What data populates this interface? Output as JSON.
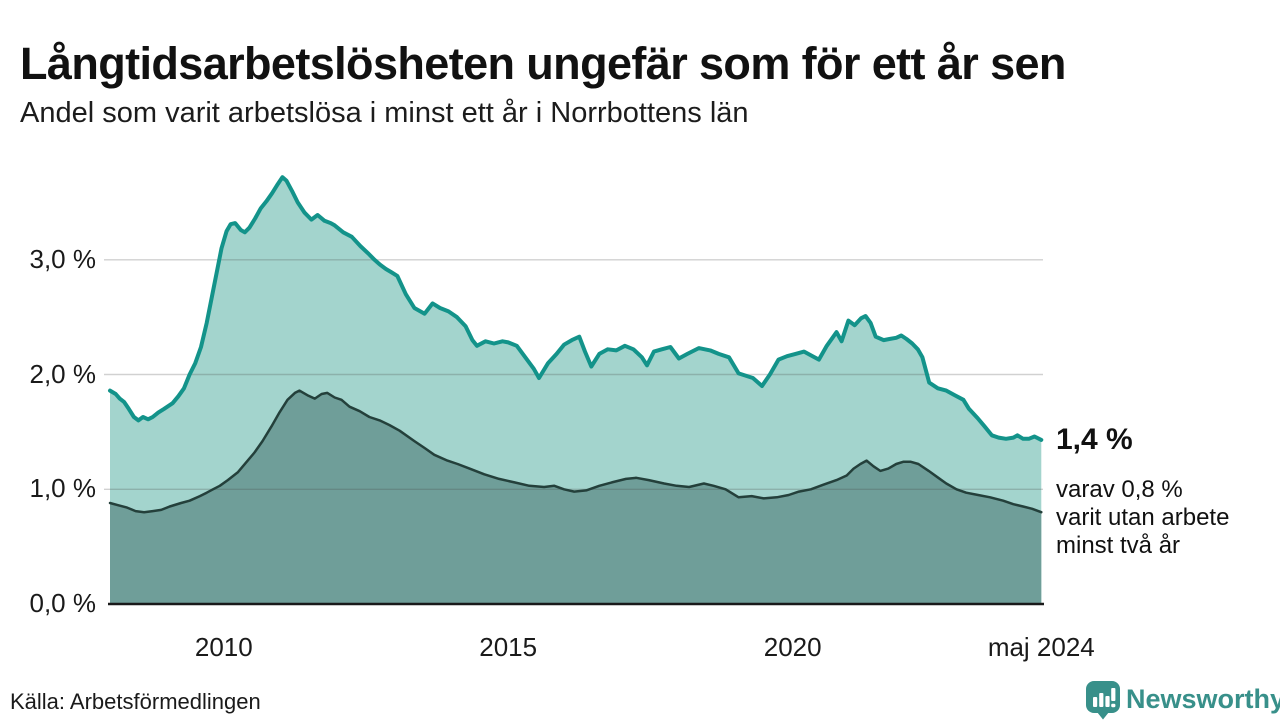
{
  "header": {
    "title": "Långtidsarbetslösheten ungefär som för ett år sen",
    "subtitle": "Andel som varit arbetslösa i minst ett år i Norrbottens län"
  },
  "annotation": {
    "value_label": "1,4 %",
    "lines": [
      "varav 0,8 %",
      "varit utan arbete",
      "minst två år"
    ]
  },
  "footer": {
    "source": "Källa: Arbetsförmedlingen",
    "brand": "Newsworthy"
  },
  "colors": {
    "text": "#111111",
    "grid": "#d9d9d9",
    "axis": "#1a1a1a",
    "brand": "#38908a",
    "line_1yr": "#13938a",
    "fill_1yr": "#a3d4cd",
    "line_2yr": "#24403b",
    "fill_2yr": "#6f9e99"
  },
  "chart_data": {
    "type": "area",
    "title": "Långtidsarbetslösheten ungefär som för ett år sen",
    "subtitle": "Andel som varit arbetslösa i minst ett år i Norrbottens län",
    "unit": "%",
    "grid": true,
    "legend_position": "none",
    "x_axis": {
      "range": [
        2008.0,
        2024.4
      ],
      "ticks": [
        {
          "t": 2010,
          "label": "2010"
        },
        {
          "t": 2015,
          "label": "2015"
        },
        {
          "t": 2020,
          "label": "2020"
        },
        {
          "t": 2024.37,
          "label": "maj 2024"
        }
      ]
    },
    "y_axis": {
      "range": [
        0,
        3.8
      ],
      "ticks": [
        {
          "v": 0,
          "label": "0,0 %"
        },
        {
          "v": 1,
          "label": "1,0 %"
        },
        {
          "v": 2,
          "label": "2,0 %"
        },
        {
          "v": 3,
          "label": "3,0 %"
        }
      ]
    },
    "series": [
      {
        "id": "1yr",
        "name": "minst ett år",
        "end_label": "1,4 %",
        "line_color": "#13938a",
        "fill_color": "#a3d4cd",
        "line_width": 4,
        "points": [
          [
            2008.0,
            1.86
          ],
          [
            2008.1,
            1.83
          ],
          [
            2008.17,
            1.79
          ],
          [
            2008.25,
            1.76
          ],
          [
            2008.33,
            1.7
          ],
          [
            2008.42,
            1.63
          ],
          [
            2008.5,
            1.6
          ],
          [
            2008.58,
            1.63
          ],
          [
            2008.67,
            1.61
          ],
          [
            2008.75,
            1.63
          ],
          [
            2008.85,
            1.67
          ],
          [
            2008.95,
            1.7
          ],
          [
            2009.1,
            1.75
          ],
          [
            2009.2,
            1.81
          ],
          [
            2009.3,
            1.88
          ],
          [
            2009.4,
            2.0
          ],
          [
            2009.5,
            2.1
          ],
          [
            2009.6,
            2.24
          ],
          [
            2009.7,
            2.45
          ],
          [
            2009.8,
            2.7
          ],
          [
            2009.9,
            2.95
          ],
          [
            2009.96,
            3.1
          ],
          [
            2010.05,
            3.25
          ],
          [
            2010.12,
            3.31
          ],
          [
            2010.2,
            3.32
          ],
          [
            2010.3,
            3.26
          ],
          [
            2010.37,
            3.24
          ],
          [
            2010.45,
            3.28
          ],
          [
            2010.55,
            3.36
          ],
          [
            2010.65,
            3.45
          ],
          [
            2010.75,
            3.51
          ],
          [
            2010.85,
            3.58
          ],
          [
            2010.95,
            3.66
          ],
          [
            2011.03,
            3.72
          ],
          [
            2011.1,
            3.69
          ],
          [
            2011.2,
            3.6
          ],
          [
            2011.3,
            3.5
          ],
          [
            2011.42,
            3.41
          ],
          [
            2011.54,
            3.35
          ],
          [
            2011.65,
            3.39
          ],
          [
            2011.77,
            3.34
          ],
          [
            2011.88,
            3.32
          ],
          [
            2011.95,
            3.3
          ],
          [
            2012.1,
            3.24
          ],
          [
            2012.25,
            3.2
          ],
          [
            2012.4,
            3.12
          ],
          [
            2012.55,
            3.05
          ],
          [
            2012.65,
            3.0
          ],
          [
            2012.74,
            2.96
          ],
          [
            2012.85,
            2.92
          ],
          [
            2012.95,
            2.89
          ],
          [
            2013.05,
            2.86
          ],
          [
            2013.2,
            2.7
          ],
          [
            2013.35,
            2.58
          ],
          [
            2013.53,
            2.53
          ],
          [
            2013.67,
            2.62
          ],
          [
            2013.8,
            2.58
          ],
          [
            2013.95,
            2.55
          ],
          [
            2014.1,
            2.5
          ],
          [
            2014.25,
            2.42
          ],
          [
            2014.37,
            2.3
          ],
          [
            2014.45,
            2.25
          ],
          [
            2014.6,
            2.29
          ],
          [
            2014.75,
            2.27
          ],
          [
            2014.9,
            2.29
          ],
          [
            2015.0,
            2.28
          ],
          [
            2015.15,
            2.25
          ],
          [
            2015.3,
            2.15
          ],
          [
            2015.45,
            2.05
          ],
          [
            2015.54,
            1.97
          ],
          [
            2015.7,
            2.1
          ],
          [
            2015.85,
            2.18
          ],
          [
            2015.98,
            2.26
          ],
          [
            2016.12,
            2.3
          ],
          [
            2016.25,
            2.33
          ],
          [
            2016.35,
            2.2
          ],
          [
            2016.46,
            2.07
          ],
          [
            2016.6,
            2.18
          ],
          [
            2016.75,
            2.22
          ],
          [
            2016.9,
            2.21
          ],
          [
            2017.05,
            2.25
          ],
          [
            2017.2,
            2.22
          ],
          [
            2017.35,
            2.15
          ],
          [
            2017.44,
            2.08
          ],
          [
            2017.56,
            2.2
          ],
          [
            2017.7,
            2.22
          ],
          [
            2017.85,
            2.24
          ],
          [
            2018.0,
            2.14
          ],
          [
            2018.15,
            2.18
          ],
          [
            2018.35,
            2.23
          ],
          [
            2018.55,
            2.21
          ],
          [
            2018.7,
            2.18
          ],
          [
            2018.88,
            2.15
          ],
          [
            2019.05,
            2.01
          ],
          [
            2019.3,
            1.97
          ],
          [
            2019.46,
            1.9
          ],
          [
            2019.6,
            2.0
          ],
          [
            2019.75,
            2.13
          ],
          [
            2019.9,
            2.16
          ],
          [
            2020.05,
            2.18
          ],
          [
            2020.2,
            2.2
          ],
          [
            2020.35,
            2.16
          ],
          [
            2020.46,
            2.13
          ],
          [
            2020.6,
            2.25
          ],
          [
            2020.7,
            2.32
          ],
          [
            2020.77,
            2.37
          ],
          [
            2020.86,
            2.29
          ],
          [
            2020.98,
            2.47
          ],
          [
            2021.09,
            2.43
          ],
          [
            2021.2,
            2.49
          ],
          [
            2021.28,
            2.51
          ],
          [
            2021.37,
            2.45
          ],
          [
            2021.46,
            2.33
          ],
          [
            2021.6,
            2.3
          ],
          [
            2021.7,
            2.31
          ],
          [
            2021.82,
            2.32
          ],
          [
            2021.91,
            2.34
          ],
          [
            2022.0,
            2.31
          ],
          [
            2022.1,
            2.27
          ],
          [
            2022.2,
            2.22
          ],
          [
            2022.28,
            2.15
          ],
          [
            2022.4,
            1.93
          ],
          [
            2022.55,
            1.88
          ],
          [
            2022.7,
            1.86
          ],
          [
            2022.85,
            1.82
          ],
          [
            2023.0,
            1.78
          ],
          [
            2023.1,
            1.7
          ],
          [
            2023.25,
            1.62
          ],
          [
            2023.37,
            1.55
          ],
          [
            2023.5,
            1.47
          ],
          [
            2023.62,
            1.45
          ],
          [
            2023.75,
            1.44
          ],
          [
            2023.88,
            1.45
          ],
          [
            2023.95,
            1.47
          ],
          [
            2024.05,
            1.44
          ],
          [
            2024.15,
            1.44
          ],
          [
            2024.25,
            1.46
          ],
          [
            2024.37,
            1.43
          ]
        ]
      },
      {
        "id": "2yr",
        "name": "minst två år",
        "end_label": "0,8 %",
        "line_color": "#24403b",
        "fill_color": "#6f9e99",
        "line_width": 2.5,
        "points": [
          [
            2008.0,
            0.88
          ],
          [
            2008.15,
            0.86
          ],
          [
            2008.3,
            0.84
          ],
          [
            2008.45,
            0.81
          ],
          [
            2008.6,
            0.8
          ],
          [
            2008.75,
            0.81
          ],
          [
            2008.9,
            0.82
          ],
          [
            2009.05,
            0.85
          ],
          [
            2009.25,
            0.88
          ],
          [
            2009.4,
            0.9
          ],
          [
            2009.58,
            0.94
          ],
          [
            2009.7,
            0.97
          ],
          [
            2009.81,
            1.0
          ],
          [
            2009.93,
            1.03
          ],
          [
            2010.07,
            1.08
          ],
          [
            2010.25,
            1.15
          ],
          [
            2010.42,
            1.25
          ],
          [
            2010.54,
            1.32
          ],
          [
            2010.68,
            1.42
          ],
          [
            2010.84,
            1.55
          ],
          [
            2010.98,
            1.67
          ],
          [
            2011.12,
            1.78
          ],
          [
            2011.25,
            1.84
          ],
          [
            2011.33,
            1.86
          ],
          [
            2011.47,
            1.82
          ],
          [
            2011.6,
            1.79
          ],
          [
            2011.72,
            1.83
          ],
          [
            2011.82,
            1.84
          ],
          [
            2011.95,
            1.8
          ],
          [
            2012.07,
            1.78
          ],
          [
            2012.21,
            1.72
          ],
          [
            2012.39,
            1.68
          ],
          [
            2012.56,
            1.63
          ],
          [
            2012.74,
            1.6
          ],
          [
            2012.91,
            1.56
          ],
          [
            2013.09,
            1.51
          ],
          [
            2013.35,
            1.42
          ],
          [
            2013.53,
            1.36
          ],
          [
            2013.7,
            1.3
          ],
          [
            2013.93,
            1.25
          ],
          [
            2014.11,
            1.22
          ],
          [
            2014.32,
            1.18
          ],
          [
            2014.58,
            1.13
          ],
          [
            2014.84,
            1.09
          ],
          [
            2015.11,
            1.06
          ],
          [
            2015.37,
            1.03
          ],
          [
            2015.63,
            1.02
          ],
          [
            2015.81,
            1.03
          ],
          [
            2015.98,
            1.0
          ],
          [
            2016.16,
            0.98
          ],
          [
            2016.37,
            0.99
          ],
          [
            2016.6,
            1.03
          ],
          [
            2016.82,
            1.06
          ],
          [
            2017.07,
            1.09
          ],
          [
            2017.25,
            1.1
          ],
          [
            2017.47,
            1.08
          ],
          [
            2017.74,
            1.05
          ],
          [
            2017.96,
            1.03
          ],
          [
            2018.18,
            1.02
          ],
          [
            2018.44,
            1.05
          ],
          [
            2018.61,
            1.03
          ],
          [
            2018.82,
            1.0
          ],
          [
            2019.05,
            0.93
          ],
          [
            2019.28,
            0.94
          ],
          [
            2019.49,
            0.92
          ],
          [
            2019.72,
            0.93
          ],
          [
            2019.93,
            0.95
          ],
          [
            2020.11,
            0.98
          ],
          [
            2020.32,
            1.0
          ],
          [
            2020.54,
            1.04
          ],
          [
            2020.77,
            1.08
          ],
          [
            2020.95,
            1.12
          ],
          [
            2021.07,
            1.18
          ],
          [
            2021.19,
            1.22
          ],
          [
            2021.3,
            1.25
          ],
          [
            2021.42,
            1.2
          ],
          [
            2021.54,
            1.16
          ],
          [
            2021.68,
            1.18
          ],
          [
            2021.82,
            1.22
          ],
          [
            2021.95,
            1.24
          ],
          [
            2022.07,
            1.24
          ],
          [
            2022.21,
            1.22
          ],
          [
            2022.39,
            1.16
          ],
          [
            2022.56,
            1.1
          ],
          [
            2022.7,
            1.05
          ],
          [
            2022.88,
            1.0
          ],
          [
            2023.05,
            0.97
          ],
          [
            2023.26,
            0.95
          ],
          [
            2023.47,
            0.93
          ],
          [
            2023.7,
            0.9
          ],
          [
            2023.88,
            0.87
          ],
          [
            2024.05,
            0.85
          ],
          [
            2024.21,
            0.83
          ],
          [
            2024.37,
            0.8
          ]
        ]
      }
    ],
    "annotations": [
      {
        "text": "1,4 %",
        "series": "1yr",
        "position": "line-end"
      },
      {
        "text": "varav 0,8 % varit utan arbete minst två år",
        "series": "2yr",
        "position": "right-margin"
      }
    ]
  }
}
